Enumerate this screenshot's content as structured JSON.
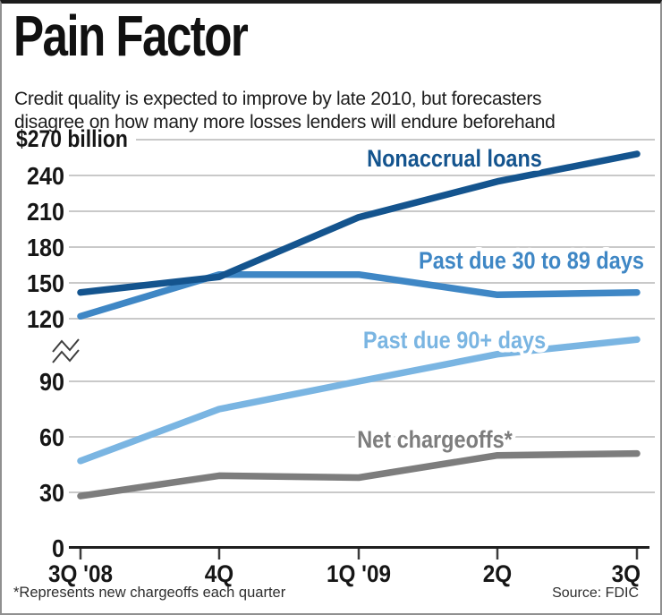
{
  "header": {
    "title": "Pain Factor",
    "subtitle_line1": "Credit quality is expected to improve by late 2010, but forecasters",
    "subtitle_line2": "disagree on how many more losses lenders will endure beforehand"
  },
  "footer": {
    "footnote": "*Represents new chargeoffs each quarter",
    "source": "Source: FDIC"
  },
  "chart_data": {
    "type": "line",
    "title": "Pain Factor",
    "unit_label": "$270 billion",
    "categories": [
      "3Q '08",
      "4Q",
      "1Q '09",
      "2Q",
      "3Q"
    ],
    "series": [
      {
        "name": "Nonaccrual loans",
        "color": "#14548e",
        "values": [
          142,
          155,
          205,
          235,
          258
        ]
      },
      {
        "name": "Past due 30 to 89 days",
        "color": "#3f87c5",
        "values": [
          122,
          157,
          157,
          140,
          142
        ]
      },
      {
        "name": "Past due 90+ days",
        "color": "#7ab5e2",
        "values": [
          47,
          75,
          90,
          103,
          110
        ]
      },
      {
        "name": "Net chargeoffs*",
        "color": "#7d7d7d",
        "values": [
          28,
          39,
          38,
          50,
          51
        ]
      }
    ],
    "y_ticks": [
      0,
      30,
      60,
      90,
      120,
      150,
      180,
      210,
      240,
      270
    ],
    "ylim": [
      0,
      270
    ],
    "axis_break_between": [
      90,
      120
    ],
    "grid": true,
    "legend_position": "inline-labels",
    "xlabel": "",
    "ylabel": "$ billion"
  }
}
